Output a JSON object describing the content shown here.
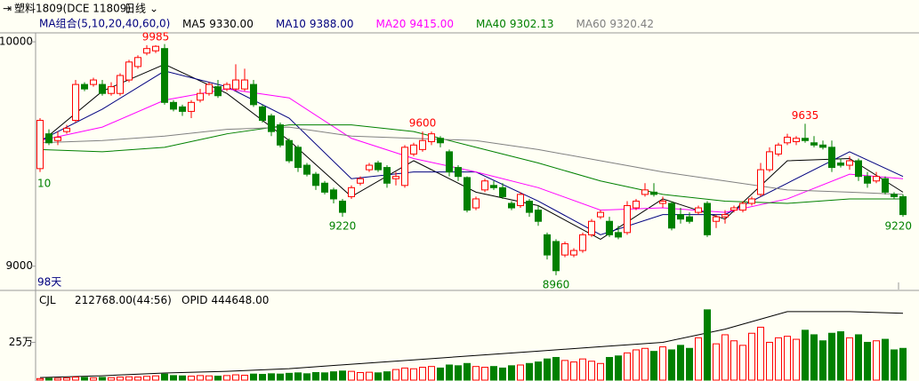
{
  "header": {
    "symbol": "塑料1809(DCE 11809)",
    "period": "日线",
    "ma_group": "MA组合(5,10,20,40,60,0)",
    "days_label": "98天",
    "left_label": 10
  },
  "chart_data": [
    {
      "type": "candlestick",
      "up_color": "#ff0000",
      "down_color": "#008000",
      "ylim": [
        8900,
        10040
      ],
      "yticks": [
        9000,
        10000
      ],
      "ohlc": [
        [
          9435,
          9660,
          9420,
          9650
        ],
        [
          9590,
          9610,
          9540,
          9550
        ],
        [
          9560,
          9600,
          9540,
          9575
        ],
        [
          9600,
          9630,
          9590,
          9615
        ],
        [
          9650,
          9830,
          9640,
          9810
        ],
        [
          9810,
          9820,
          9780,
          9790
        ],
        [
          9810,
          9840,
          9800,
          9830
        ],
        [
          9810,
          9830,
          9760,
          9770
        ],
        [
          9770,
          9820,
          9760,
          9800
        ],
        [
          9770,
          9860,
          9760,
          9850
        ],
        [
          9830,
          9920,
          9820,
          9910
        ],
        [
          9890,
          9940,
          9880,
          9930
        ],
        [
          9950,
          9985,
          9940,
          9970
        ],
        [
          9960,
          9985,
          9950,
          9980
        ],
        [
          9970,
          9990,
          9720,
          9730
        ],
        [
          9730,
          9740,
          9690,
          9700
        ],
        [
          9710,
          9720,
          9670,
          9690
        ],
        [
          9690,
          9740,
          9660,
          9730
        ],
        [
          9740,
          9790,
          9730,
          9770
        ],
        [
          9770,
          9820,
          9760,
          9810
        ],
        [
          9800,
          9830,
          9750,
          9760
        ],
        [
          9790,
          9820,
          9780,
          9810
        ],
        [
          9790,
          9900,
          9780,
          9830
        ],
        [
          9790,
          9880,
          9780,
          9830
        ],
        [
          9810,
          9830,
          9710,
          9720
        ],
        [
          9710,
          9720,
          9640,
          9650
        ],
        [
          9670,
          9680,
          9580,
          9600
        ],
        [
          9630,
          9640,
          9530,
          9540
        ],
        [
          9560,
          9570,
          9460,
          9470
        ],
        [
          9530,
          9540,
          9420,
          9440
        ],
        [
          9450,
          9460,
          9400,
          9410
        ],
        [
          9410,
          9420,
          9340,
          9360
        ],
        [
          9370,
          9380,
          9320,
          9330
        ],
        [
          9340,
          9350,
          9280,
          9300
        ],
        [
          9290,
          9300,
          9220,
          9240
        ],
        [
          9310,
          9360,
          9300,
          9350
        ],
        [
          9370,
          9400,
          9360,
          9390
        ],
        [
          9430,
          9460,
          9420,
          9450
        ],
        [
          9460,
          9470,
          9420,
          9430
        ],
        [
          9440,
          9450,
          9350,
          9370
        ],
        [
          9390,
          9420,
          9360,
          9400
        ],
        [
          9360,
          9540,
          9350,
          9530
        ],
        [
          9500,
          9550,
          9490,
          9540
        ],
        [
          9520,
          9600,
          9510,
          9560
        ],
        [
          9555,
          9600,
          9540,
          9590
        ],
        [
          9570,
          9580,
          9530,
          9550
        ],
        [
          9510,
          9520,
          9400,
          9420
        ],
        [
          9440,
          9450,
          9380,
          9400
        ],
        [
          9395,
          9400,
          9240,
          9250
        ],
        [
          9260,
          9310,
          9250,
          9300
        ],
        [
          9340,
          9390,
          9330,
          9380
        ],
        [
          9360,
          9380,
          9340,
          9350
        ],
        [
          9350,
          9370,
          9300,
          9310
        ],
        [
          9280,
          9290,
          9250,
          9260
        ],
        [
          9270,
          9330,
          9260,
          9320
        ],
        [
          9290,
          9300,
          9220,
          9240
        ],
        [
          9250,
          9270,
          9180,
          9200
        ],
        [
          9140,
          9150,
          9030,
          9050
        ],
        [
          9110,
          9120,
          8960,
          8980
        ],
        [
          9050,
          9110,
          9040,
          9100
        ],
        [
          9050,
          9080,
          9040,
          9070
        ],
        [
          9070,
          9150,
          9060,
          9140
        ],
        [
          9140,
          9210,
          9130,
          9200
        ],
        [
          9220,
          9250,
          9210,
          9240
        ],
        [
          9200,
          9220,
          9130,
          9140
        ],
        [
          9150,
          9180,
          9120,
          9130
        ],
        [
          9150,
          9290,
          9140,
          9270
        ],
        [
          9260,
          9300,
          9250,
          9290
        ],
        [
          9320,
          9370,
          9310,
          9340
        ],
        [
          9330,
          9370,
          9310,
          9320
        ],
        [
          9280,
          9310,
          9260,
          9290
        ],
        [
          9280,
          9290,
          9160,
          9170
        ],
        [
          9230,
          9260,
          9190,
          9210
        ],
        [
          9220,
          9240,
          9190,
          9200
        ],
        [
          9240,
          9270,
          9230,
          9260
        ],
        [
          9280,
          9290,
          9130,
          9140
        ],
        [
          9200,
          9230,
          9170,
          9220
        ],
        [
          9220,
          9250,
          9190,
          9230
        ],
        [
          9250,
          9270,
          9240,
          9260
        ],
        [
          9250,
          9290,
          9240,
          9280
        ],
        [
          9280,
          9310,
          9270,
          9300
        ],
        [
          9320,
          9460,
          9310,
          9430
        ],
        [
          9430,
          9530,
          9420,
          9510
        ],
        [
          9500,
          9550,
          9490,
          9540
        ],
        [
          9550,
          9590,
          9540,
          9575
        ],
        [
          9555,
          9580,
          9540,
          9570
        ],
        [
          9570,
          9635,
          9550,
          9560
        ],
        [
          9550,
          9580,
          9530,
          9540
        ],
        [
          9540,
          9560,
          9520,
          9530
        ],
        [
          9530,
          9560,
          9420,
          9440
        ],
        [
          9460,
          9480,
          9440,
          9450
        ],
        [
          9450,
          9490,
          9430,
          9470
        ],
        [
          9470,
          9480,
          9380,
          9400
        ],
        [
          9400,
          9420,
          9350,
          9370
        ],
        [
          9380,
          9420,
          9370,
          9400
        ],
        [
          9390,
          9400,
          9320,
          9330
        ],
        [
          9320,
          9330,
          9300,
          9310
        ],
        [
          9310,
          9320,
          9220,
          9230
        ]
      ],
      "series": [
        {
          "name": "MA5",
          "last": "9330.00",
          "color": "#000000",
          "x": [
            0,
            7,
            14,
            21,
            28,
            35,
            42,
            49,
            56,
            63,
            70,
            77,
            84,
            91,
            97
          ],
          "values": [
            9550,
            9780,
            9900,
            9770,
            9560,
            9310,
            9470,
            9330,
            9270,
            9120,
            9300,
            9210,
            9470,
            9480,
            9330
          ]
        },
        {
          "name": "MA10",
          "last": "9388.00",
          "color": "#000080",
          "x": [
            0,
            7,
            14,
            21,
            28,
            35,
            42,
            49,
            56,
            63,
            70,
            77,
            84,
            91,
            97
          ],
          "values": [
            9560,
            9700,
            9870,
            9800,
            9660,
            9390,
            9420,
            9420,
            9290,
            9140,
            9230,
            9230,
            9370,
            9510,
            9400
          ]
        },
        {
          "name": "MA20",
          "last": "9415.00",
          "color": "#ff00ff",
          "x": [
            0,
            7,
            14,
            21,
            28,
            35,
            42,
            49,
            56,
            63,
            70,
            77,
            84,
            91,
            97
          ],
          "values": [
            9560,
            9620,
            9740,
            9790,
            9750,
            9570,
            9480,
            9420,
            9350,
            9250,
            9260,
            9240,
            9300,
            9410,
            9390
          ]
        },
        {
          "name": "MA40",
          "last": "9302.13",
          "color": "#008000",
          "x": [
            0,
            7,
            14,
            21,
            28,
            35,
            42,
            49,
            56,
            63,
            70,
            77,
            84,
            91,
            97
          ],
          "values": [
            9520,
            9510,
            9530,
            9590,
            9630,
            9630,
            9600,
            9530,
            9460,
            9380,
            9320,
            9290,
            9280,
            9300,
            9300
          ]
        },
        {
          "name": "MA60",
          "last": "9320.42",
          "color": "#808080",
          "x": [
            0,
            7,
            14,
            21,
            28,
            35,
            42,
            49,
            56,
            63,
            70,
            77,
            84,
            91,
            97
          ],
          "values": [
            9550,
            9560,
            9580,
            9610,
            9620,
            9580,
            9570,
            9560,
            9520,
            9470,
            9420,
            9380,
            9340,
            9330,
            9320
          ]
        }
      ],
      "annotations": [
        {
          "value": 9985,
          "at": 13,
          "anchor": "high"
        },
        {
          "value": 9600,
          "at": 43,
          "anchor": "high"
        },
        {
          "value": 9220,
          "at": 34,
          "anchor": "low"
        },
        {
          "value": 8960,
          "at": 58,
          "anchor": "low"
        },
        {
          "value": 9635,
          "at": 86,
          "anchor": "high"
        },
        {
          "value": 9220,
          "at": 97,
          "anchor": "low"
        }
      ],
      "high_color": "#ff0000",
      "low_color": "#008000"
    },
    {
      "type": "bar",
      "name": "CJL",
      "last": "212768.00(44:56)",
      "ylim": [
        0,
        570000
      ],
      "yticks": [
        {
          "value": 250000,
          "label": "25万"
        }
      ],
      "values": [
        10000,
        12000,
        12000,
        14000,
        20000,
        18000,
        15000,
        18000,
        16000,
        20000,
        22000,
        20000,
        25000,
        28000,
        40000,
        30000,
        28000,
        26000,
        30000,
        28000,
        26000,
        30000,
        35000,
        32000,
        40000,
        38000,
        42000,
        40000,
        45000,
        48000,
        42000,
        50000,
        48000,
        55000,
        60000,
        58000,
        50000,
        52000,
        48000,
        55000,
        70000,
        80000,
        75000,
        85000,
        90000,
        80000,
        100000,
        95000,
        110000,
        90000,
        85000,
        90000,
        80000,
        95000,
        100000,
        110000,
        120000,
        140000,
        150000,
        130000,
        120000,
        140000,
        125000,
        110000,
        150000,
        160000,
        180000,
        200000,
        210000,
        190000,
        220000,
        200000,
        230000,
        210000,
        280000,
        465000,
        240000,
        300000,
        260000,
        230000,
        310000,
        350000,
        250000,
        280000,
        290000,
        270000,
        330000,
        300000,
        260000,
        310000,
        320000,
        280000,
        300000,
        250000,
        260000,
        270000,
        200000,
        210000
      ],
      "series": [
        {
          "name": "OPID",
          "last": "444648.00",
          "color": "#000000",
          "x": [
            0,
            7,
            14,
            21,
            28,
            35,
            42,
            49,
            56,
            63,
            70,
            77,
            84,
            91,
            97
          ],
          "values": [
            17000,
            29000,
            47000,
            58000,
            76000,
            105000,
            134000,
            163000,
            192000,
            221000,
            250000,
            337000,
            453000,
            453000,
            442000
          ]
        }
      ]
    }
  ]
}
